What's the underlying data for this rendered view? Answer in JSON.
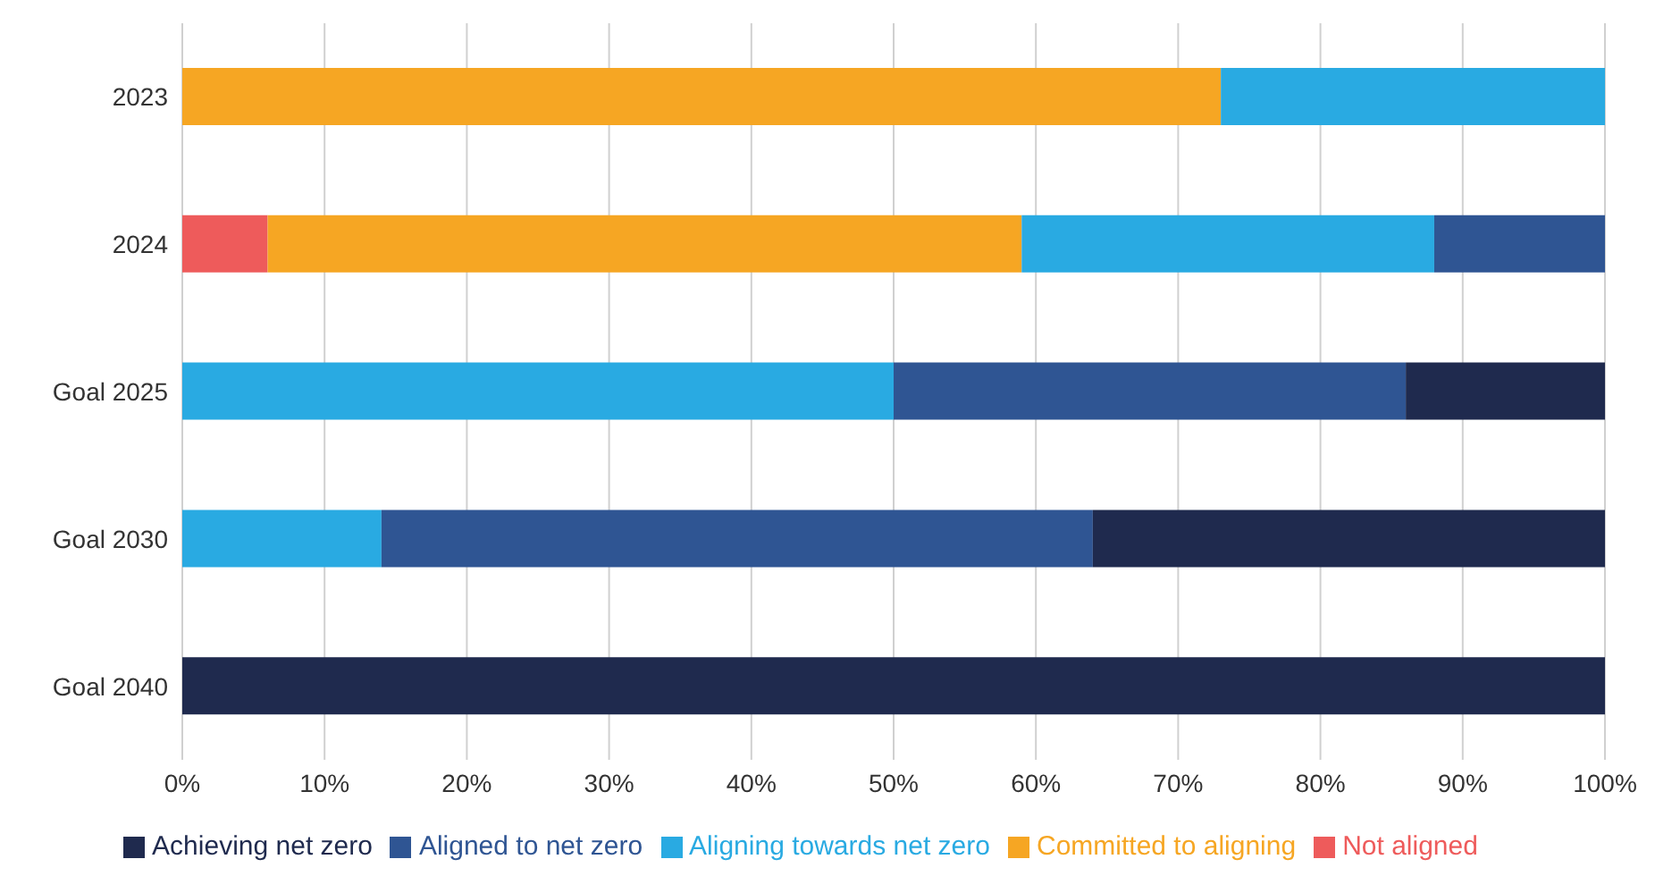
{
  "chart_data": {
    "type": "bar",
    "orientation": "horizontal",
    "stacked": true,
    "categories": [
      "2023",
      "2024",
      "Goal 2025",
      "Goal 2030",
      "Goal 2040"
    ],
    "series": [
      {
        "name": "Not aligned",
        "color": "#ee5b5b",
        "values": [
          null,
          6,
          null,
          null,
          null
        ]
      },
      {
        "name": "Committed to aligning",
        "color": "#f6a623",
        "values": [
          73,
          53,
          null,
          null,
          null
        ]
      },
      {
        "name": "Aligning towards net zero",
        "color": "#29aae2",
        "values": [
          27,
          29,
          50,
          14,
          null
        ]
      },
      {
        "name": "Aligned to net zero",
        "color": "#2f5593",
        "values": [
          null,
          12,
          36,
          50,
          null
        ]
      },
      {
        "name": "Achieving net zero",
        "color": "#1f2a4e",
        "values": [
          null,
          null,
          14,
          36,
          100
        ]
      }
    ],
    "xlim": [
      0,
      100
    ],
    "xticks": [
      {
        "value": 0,
        "label": "0%"
      },
      {
        "value": 10,
        "label": "10%"
      },
      {
        "value": 20,
        "label": "20%"
      },
      {
        "value": 30,
        "label": "30%"
      },
      {
        "value": 40,
        "label": "40%"
      },
      {
        "value": 50,
        "label": "50%"
      },
      {
        "value": 60,
        "label": "60%"
      },
      {
        "value": 70,
        "label": "70%"
      },
      {
        "value": 80,
        "label": "80%"
      },
      {
        "value": 90,
        "label": "90%"
      },
      {
        "value": 100,
        "label": "100%"
      }
    ],
    "grid": "x",
    "legend": "bottom"
  }
}
